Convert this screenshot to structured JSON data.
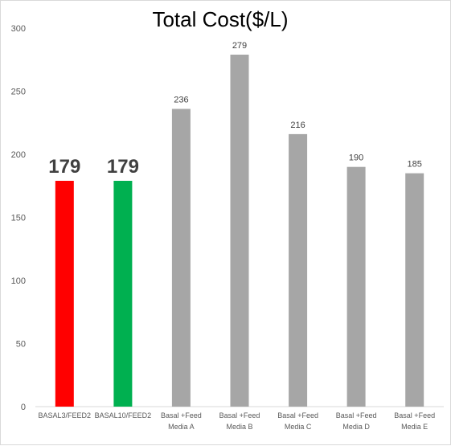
{
  "chart_data": {
    "type": "bar",
    "title": "Total Cost($/L)",
    "xlabel": "",
    "ylabel": "",
    "ylim": [
      0,
      300
    ],
    "yticks": [
      0,
      50,
      100,
      150,
      200,
      250,
      300
    ],
    "grid": false,
    "legend": "none",
    "categories": [
      [
        "BASAL3/FEED2"
      ],
      [
        "BASAL10/FEED2"
      ],
      [
        "Basal +Feed",
        "Media A"
      ],
      [
        "Basal +Feed",
        "Media B"
      ],
      [
        "Basal +Feed",
        "Media C"
      ],
      [
        "Basal +Feed",
        "Media D"
      ],
      [
        "Basal +Feed",
        "Media E"
      ]
    ],
    "values": [
      179,
      179,
      236,
      279,
      216,
      190,
      185
    ],
    "colors": [
      "#ff0000",
      "#00b050",
      "#a6a6a6",
      "#a6a6a6",
      "#a6a6a6",
      "#a6a6a6",
      "#a6a6a6"
    ],
    "emphasized_labels": [
      true,
      true,
      false,
      false,
      false,
      false,
      false
    ]
  }
}
